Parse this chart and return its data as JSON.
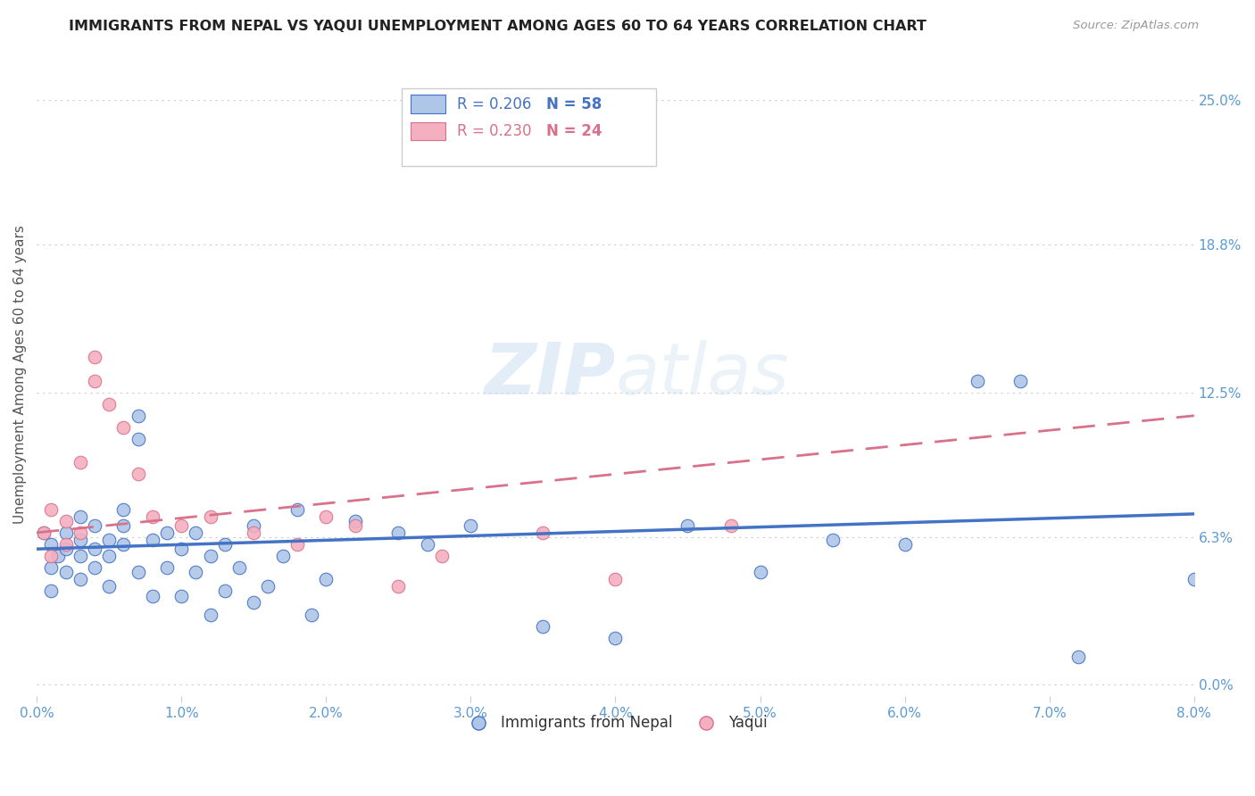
{
  "title": "IMMIGRANTS FROM NEPAL VS YAQUI UNEMPLOYMENT AMONG AGES 60 TO 64 YEARS CORRELATION CHART",
  "source": "Source: ZipAtlas.com",
  "ylabel": "Unemployment Among Ages 60 to 64 years",
  "xlim": [
    0.0,
    0.08
  ],
  "ylim": [
    -0.005,
    0.27
  ],
  "xticks": [
    0.0,
    0.01,
    0.02,
    0.03,
    0.04,
    0.05,
    0.06,
    0.07,
    0.08
  ],
  "xticklabels": [
    "0.0%",
    "1.0%",
    "2.0%",
    "3.0%",
    "4.0%",
    "5.0%",
    "6.0%",
    "7.0%",
    "8.0%"
  ],
  "right_ytick_vals": [
    0.0,
    0.063,
    0.125,
    0.188,
    0.25
  ],
  "right_ytick_labels": [
    "0.0%",
    "6.3%",
    "12.5%",
    "18.8%",
    "25.0%"
  ],
  "grid_color": "#cccccc",
  "background_color": "#ffffff",
  "legend_R1": "R = 0.206",
  "legend_N1": "N = 58",
  "legend_R2": "R = 0.230",
  "legend_N2": "N = 24",
  "color_blue": "#aec6e8",
  "color_pink": "#f4afc0",
  "color_blue_dark": "#4472c4",
  "color_pink_dark": "#d9718a",
  "color_axis_text": "#5b9bd5",
  "watermark_color": "#dce8f5",
  "nepal_x": [
    0.0005,
    0.001,
    0.001,
    0.0015,
    0.001,
    0.002,
    0.002,
    0.002,
    0.003,
    0.003,
    0.003,
    0.003,
    0.004,
    0.004,
    0.004,
    0.005,
    0.005,
    0.005,
    0.006,
    0.006,
    0.006,
    0.007,
    0.007,
    0.007,
    0.008,
    0.008,
    0.009,
    0.009,
    0.01,
    0.01,
    0.011,
    0.011,
    0.012,
    0.012,
    0.013,
    0.013,
    0.014,
    0.015,
    0.015,
    0.016,
    0.017,
    0.018,
    0.019,
    0.02,
    0.022,
    0.025,
    0.027,
    0.03,
    0.035,
    0.04,
    0.045,
    0.05,
    0.055,
    0.06,
    0.065,
    0.068,
    0.072,
    0.08
  ],
  "nepal_y": [
    0.065,
    0.05,
    0.06,
    0.055,
    0.04,
    0.058,
    0.048,
    0.065,
    0.062,
    0.055,
    0.045,
    0.072,
    0.058,
    0.05,
    0.068,
    0.055,
    0.042,
    0.062,
    0.06,
    0.068,
    0.075,
    0.048,
    0.115,
    0.105,
    0.062,
    0.038,
    0.065,
    0.05,
    0.058,
    0.038,
    0.048,
    0.065,
    0.055,
    0.03,
    0.06,
    0.04,
    0.05,
    0.035,
    0.068,
    0.042,
    0.055,
    0.075,
    0.03,
    0.045,
    0.07,
    0.065,
    0.06,
    0.068,
    0.025,
    0.02,
    0.068,
    0.048,
    0.062,
    0.06,
    0.13,
    0.13,
    0.012,
    0.045
  ],
  "yaqui_x": [
    0.0005,
    0.001,
    0.001,
    0.002,
    0.002,
    0.003,
    0.003,
    0.004,
    0.004,
    0.005,
    0.006,
    0.007,
    0.008,
    0.01,
    0.012,
    0.015,
    0.018,
    0.02,
    0.022,
    0.025,
    0.028,
    0.035,
    0.04,
    0.048
  ],
  "yaqui_y": [
    0.065,
    0.055,
    0.075,
    0.06,
    0.07,
    0.065,
    0.095,
    0.14,
    0.13,
    0.12,
    0.11,
    0.09,
    0.072,
    0.068,
    0.072,
    0.065,
    0.06,
    0.072,
    0.068,
    0.042,
    0.055,
    0.065,
    0.045,
    0.068
  ],
  "nepal_trend_x": [
    0.0,
    0.08
  ],
  "nepal_trend_y": [
    0.058,
    0.073
  ],
  "yaqui_trend_x": [
    0.0,
    0.08
  ],
  "yaqui_trend_y": [
    0.065,
    0.115
  ]
}
